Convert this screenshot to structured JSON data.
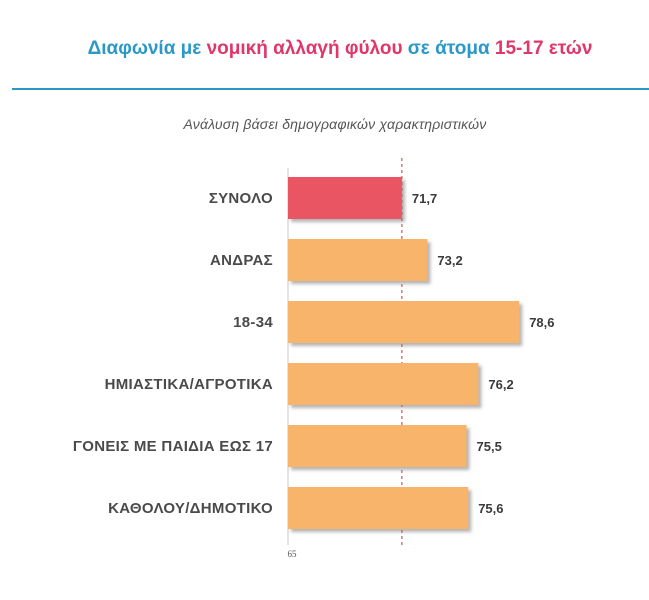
{
  "header": {
    "title_parts": [
      {
        "text": "Διαφωνία με ",
        "color": "blue"
      },
      {
        "text": "νομική αλλαγή φύλου",
        "color": "pink"
      },
      {
        "text": " σε άτομα ",
        "color": "blue"
      },
      {
        "text": "15-17 ετών",
        "color": "pink"
      }
    ],
    "subtitle": "Ανάλυση βάσει δημογραφικών χαρακτηριστικών"
  },
  "colors": {
    "title_blue": "#2a98c9",
    "title_pink": "#e0366a",
    "total_bar": "#ea5463",
    "group_bar": "#f7b46a",
    "reference_line": "#c0392b"
  },
  "chart_data": {
    "type": "bar",
    "orientation": "horizontal",
    "categories": [
      "ΣΥΝΟΛΟ",
      "ΑΝΔΡΑΣ",
      "18-34",
      "ΗΜΙΑΣΤΙΚΑ/ΑΓΡΟΤΙΚΑ",
      "ΓΟΝΕΙΣ ΜΕ ΠΑΙΔΙΑ ΕΩΣ 17",
      "ΚΑΘΟΛΟΥ/ΔΗΜΟΤΙΚΟ"
    ],
    "values": [
      71.7,
      73.2,
      78.6,
      76.2,
      75.5,
      75.6
    ],
    "value_labels": [
      "71,7",
      "73,2",
      "78,6",
      "76,2",
      "75,5",
      "75,6"
    ],
    "highlight_index": 0,
    "reference_value": 71.7,
    "xlim": [
      65,
      80
    ],
    "x_tick_labels": [
      "65"
    ],
    "grid": false,
    "legend": "none"
  }
}
